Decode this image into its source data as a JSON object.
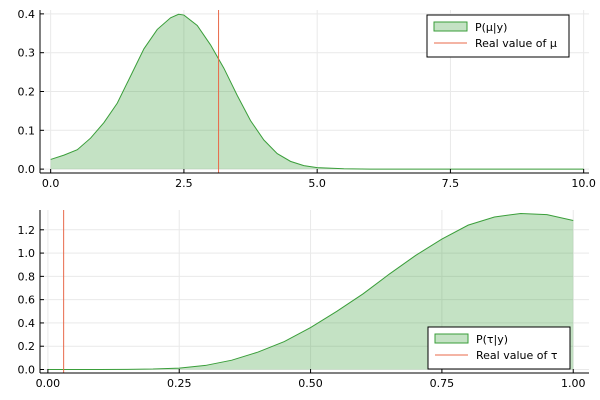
{
  "colors": {
    "fill": "#3a9e3a",
    "fill_opacity": 0.3,
    "line": "#3a9e3a",
    "vline": "#e8694a",
    "grid": "#e9e9e9",
    "axis": "#000000"
  },
  "chart_data": [
    {
      "type": "area",
      "title": "",
      "xlabel": "",
      "ylabel": "",
      "xlim": [
        -0.2,
        10.1
      ],
      "ylim": [
        -0.01,
        0.41
      ],
      "xticks": [
        0,
        2.5,
        5,
        7.5,
        10
      ],
      "xtick_labels": [
        "0.0",
        "2.5",
        "5.0",
        "7.5",
        "10.0"
      ],
      "yticks": [
        0,
        0.1,
        0.2,
        0.3,
        0.4
      ],
      "ytick_labels": [
        "0.0",
        "0.1",
        "0.2",
        "0.3",
        "0.4"
      ],
      "grid": true,
      "legend_position": "top-right",
      "series": [
        {
          "name": "P(μ|y)",
          "kind": "area",
          "x": [
            0,
            0.25,
            0.5,
            0.75,
            1.0,
            1.25,
            1.5,
            1.75,
            2.0,
            2.25,
            2.4,
            2.5,
            2.75,
            3.0,
            3.25,
            3.5,
            3.75,
            4.0,
            4.25,
            4.5,
            4.75,
            5.0,
            5.5,
            6.0,
            7.0,
            8.0,
            9.0,
            10.0
          ],
          "y": [
            0.025,
            0.036,
            0.05,
            0.08,
            0.12,
            0.17,
            0.24,
            0.31,
            0.36,
            0.39,
            0.399,
            0.397,
            0.37,
            0.32,
            0.26,
            0.19,
            0.125,
            0.075,
            0.04,
            0.02,
            0.009,
            0.004,
            0.001,
            0.0,
            0.0,
            0.0,
            0.0,
            0.0
          ]
        },
        {
          "name": "Real value of μ",
          "kind": "vline",
          "x": 3.15
        }
      ]
    },
    {
      "type": "area",
      "title": "",
      "xlabel": "",
      "ylabel": "",
      "xlim": [
        -0.015,
        1.03
      ],
      "ylim": [
        -0.03,
        1.37
      ],
      "xticks": [
        0,
        0.25,
        0.5,
        0.75,
        1.0
      ],
      "xtick_labels": [
        "0.00",
        "0.25",
        "0.50",
        "0.75",
        "1.00"
      ],
      "yticks": [
        0,
        0.2,
        0.4,
        0.6,
        0.8,
        1.0,
        1.2
      ],
      "ytick_labels": [
        "0.0",
        "0.2",
        "0.4",
        "0.6",
        "0.8",
        "1.0",
        "1.2"
      ],
      "grid": true,
      "legend_position": "bottom-right",
      "series": [
        {
          "name": "P(τ|y)",
          "kind": "area",
          "x": [
            0,
            0.05,
            0.1,
            0.15,
            0.2,
            0.25,
            0.3,
            0.35,
            0.4,
            0.45,
            0.5,
            0.55,
            0.6,
            0.65,
            0.7,
            0.75,
            0.8,
            0.85,
            0.9,
            0.95,
            1.0
          ],
          "y": [
            0.0,
            0.0,
            0.0,
            0.001,
            0.004,
            0.012,
            0.035,
            0.08,
            0.15,
            0.24,
            0.36,
            0.5,
            0.65,
            0.82,
            0.98,
            1.12,
            1.24,
            1.31,
            1.34,
            1.33,
            1.28
          ]
        },
        {
          "name": "Real value of τ",
          "kind": "vline",
          "x": 0.03
        }
      ]
    }
  ]
}
